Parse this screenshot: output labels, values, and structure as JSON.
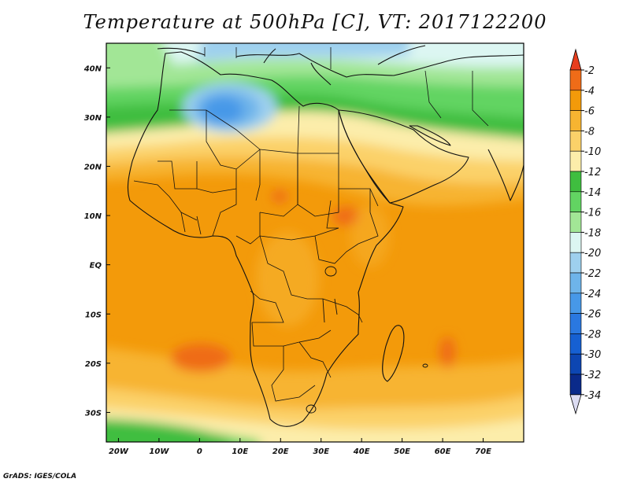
{
  "title": "Temperature at 500hPa [C], VT: 2017122200",
  "credit": "GrADS: IGES/COLA",
  "map": {
    "lon_range": [
      -23,
      80
    ],
    "lat_range": [
      -36,
      45
    ],
    "lat_ticks": [
      {
        "value": 40,
        "label": "40N"
      },
      {
        "value": 30,
        "label": "30N"
      },
      {
        "value": 20,
        "label": "20N"
      },
      {
        "value": 10,
        "label": "10N"
      },
      {
        "value": 0,
        "label": "EQ"
      },
      {
        "value": -10,
        "label": "10S"
      },
      {
        "value": -20,
        "label": "20S"
      },
      {
        "value": -30,
        "label": "30S"
      }
    ],
    "lon_ticks": [
      {
        "value": -20,
        "label": "20W"
      },
      {
        "value": -10,
        "label": "10W"
      },
      {
        "value": 0,
        "label": "0"
      },
      {
        "value": 10,
        "label": "10E"
      },
      {
        "value": 20,
        "label": "20E"
      },
      {
        "value": 30,
        "label": "30E"
      },
      {
        "value": 40,
        "label": "40E"
      },
      {
        "value": 50,
        "label": "50E"
      },
      {
        "value": 60,
        "label": "60E"
      },
      {
        "value": 70,
        "label": "70E"
      }
    ],
    "field_features": [
      {
        "name": "cold-low-morocco",
        "lon": -5,
        "lat": 31,
        "value": -30
      },
      {
        "name": "warm-core-south-atlantic",
        "lon": 0,
        "lat": -19,
        "value": -4
      },
      {
        "name": "warm-core-madagascar-east",
        "lon": 57,
        "lat": -19,
        "value": -4
      },
      {
        "name": "warm-core-sahel",
        "lon": 33,
        "lat": 8,
        "value": -4
      }
    ]
  },
  "legend": {
    "top_triangle_color": "#e83e1e",
    "bottom_triangle_color": "#dcdcf2",
    "labels": [
      "-2",
      "-4",
      "-6",
      "-8",
      "-10",
      "-12",
      "-14",
      "-16",
      "-18",
      "-20",
      "-22",
      "-24",
      "-26",
      "-28",
      "-30",
      "-32",
      "-34"
    ],
    "colors": [
      "#ef6c18",
      "#f39a0a",
      "#f7b431",
      "#fbd169",
      "#fcedaa",
      "#3fbe3f",
      "#62d462",
      "#a2e696",
      "#dcf6f2",
      "#9ed0ee",
      "#6eb4ea",
      "#4798e8",
      "#2a78e0",
      "#1660d2",
      "#0d46b2",
      "#0a2a8a",
      "#dcdcf2"
    ]
  }
}
